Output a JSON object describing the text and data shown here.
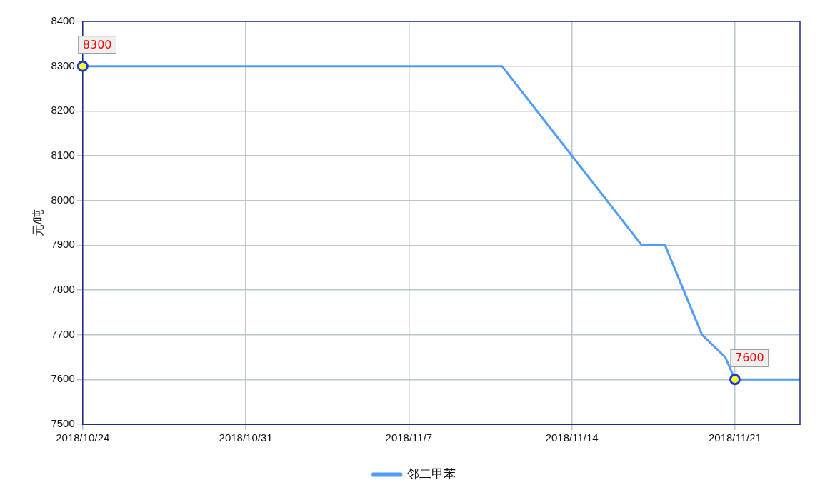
{
  "chart_data": {
    "type": "line",
    "ylabel": "元/吨",
    "x": [
      "2018-10-24",
      "2018-11-11",
      "2018-11-14",
      "2018-11-17",
      "2018-11-18",
      "2018-11-19T14:00",
      "2018-11-20T14:00",
      "2018-11-21",
      "2018-11-23T19:00"
    ],
    "series": [
      {
        "name": "邻二甲苯",
        "color": "#4f9cf9",
        "values": [
          8300,
          8300,
          8100,
          7900,
          7900,
          7700,
          7650,
          7600,
          7600
        ]
      }
    ],
    "xlim": [
      "2018-10-24",
      "2018-11-23T19:00"
    ],
    "xticks": [
      {
        "value": "2018-10-24",
        "label": "2018/10/24"
      },
      {
        "value": "2018-10-31",
        "label": "2018/10/31"
      },
      {
        "value": "2018-11-07",
        "label": "2018/11/7"
      },
      {
        "value": "2018-11-14",
        "label": "2018/11/14"
      },
      {
        "value": "2018-11-21",
        "label": "2018/11/21"
      }
    ],
    "ylim": [
      7500,
      8400
    ],
    "yticks": [
      7500,
      7600,
      7700,
      7800,
      7900,
      8000,
      8100,
      8200,
      8300,
      8400
    ],
    "annotations": [
      {
        "text": "8300",
        "x": "2018-10-24",
        "y": 8300
      },
      {
        "text": "7600",
        "x": "2018-11-21",
        "y": 7600
      }
    ],
    "grid": true,
    "legend": "bottom",
    "marker": "none",
    "line_style": "solid"
  }
}
